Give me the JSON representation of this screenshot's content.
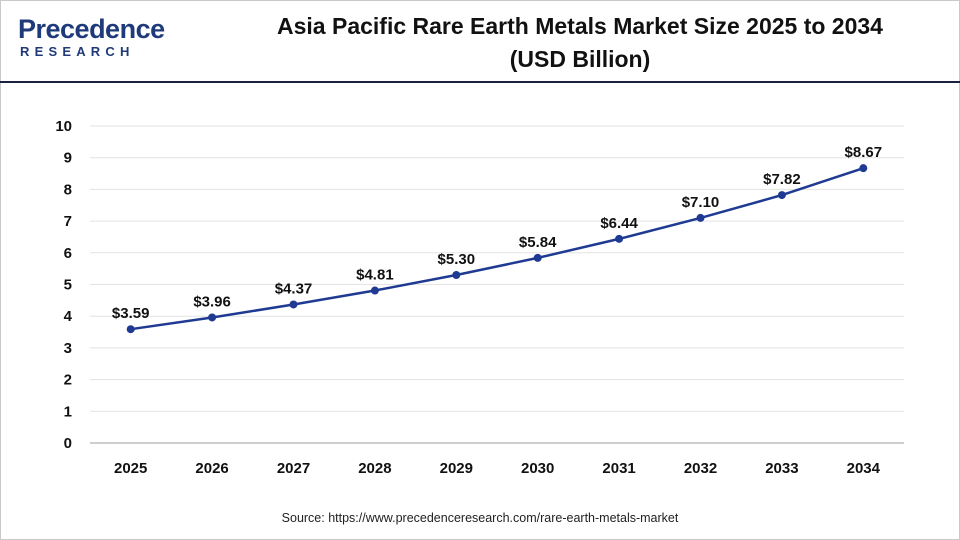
{
  "header": {
    "logo_main": "Precedence",
    "logo_sub": "RESEARCH",
    "title_line1": "Asia Pacific Rare Earth Metals Market Size 2025 to 2034",
    "title_line2": "(USD Billion)"
  },
  "source": "Source: https://www.precedenceresearch.com/rare-earth-metals-market",
  "colors": {
    "line": "#1f3a93",
    "marker": "#1f3a93",
    "header_rule": "#1a2240",
    "logo": "#1f3a7a"
  },
  "chart_data": {
    "type": "line",
    "title": "Asia Pacific Rare Earth Metals Market Size 2025 to 2034 (USD Billion)",
    "xlabel": "",
    "ylabel": "",
    "x": [
      "2025",
      "2026",
      "2027",
      "2028",
      "2029",
      "2030",
      "2031",
      "2032",
      "2033",
      "2034"
    ],
    "values": [
      3.59,
      3.96,
      4.37,
      4.81,
      5.3,
      5.84,
      6.44,
      7.1,
      7.82,
      8.67
    ],
    "data_labels": [
      "$3.59",
      "$3.96",
      "$4.37",
      "$4.81",
      "$5.30",
      "$5.84",
      "$6.44",
      "$7.10",
      "$7.82",
      "$8.67"
    ],
    "ylim": [
      0,
      10
    ],
    "yticks": [
      "0",
      "1",
      "2",
      "3",
      "4",
      "5",
      "6",
      "7",
      "8",
      "9",
      "10"
    ],
    "grid": true,
    "legend": "none"
  }
}
